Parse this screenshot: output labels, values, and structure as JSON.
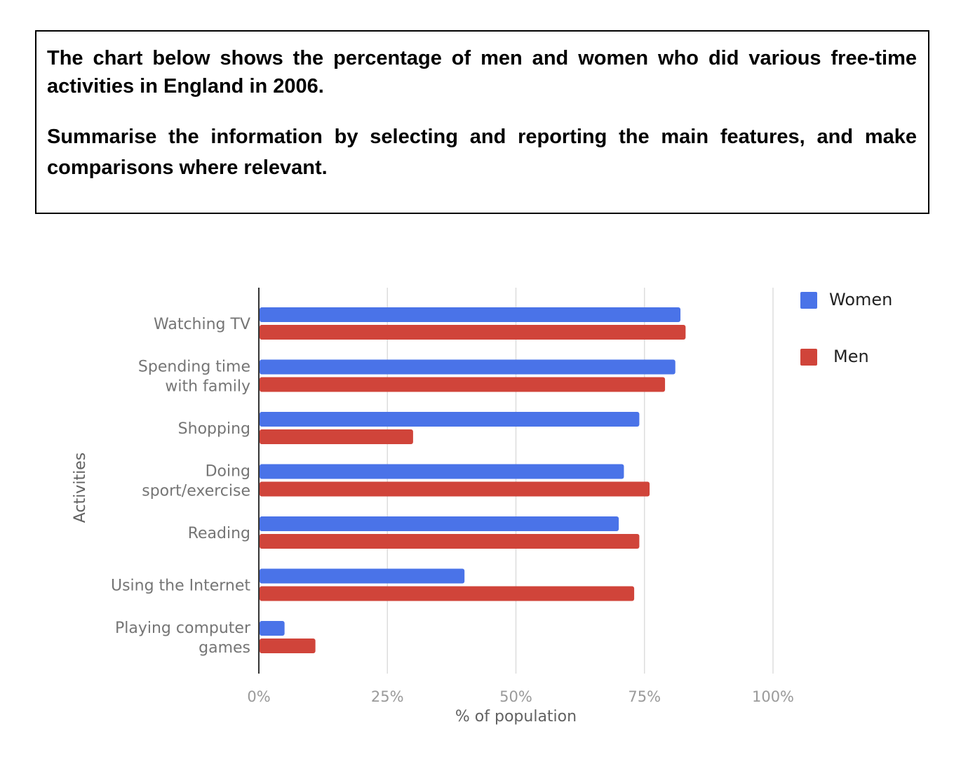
{
  "task": {
    "line1": "The chart below shows the percentage of men and women who did various free-time activities in England in 2006.",
    "line2": "Summarise the information by selecting and reporting the main features, and make comparisons where relevant."
  },
  "chart_data": {
    "type": "bar",
    "orientation": "horizontal",
    "categories": [
      "Watching TV",
      "Spending time with family",
      "Shopping",
      "Doing sport/exercise",
      "Reading",
      "Using the Internet",
      "Playing computer games"
    ],
    "category_lines": [
      [
        "Watching TV"
      ],
      [
        "Spending time",
        "with family"
      ],
      [
        "Shopping"
      ],
      [
        "Doing",
        "sport/exercise"
      ],
      [
        "Reading"
      ],
      [
        "Using the Internet"
      ],
      [
        "Playing computer",
        "games"
      ]
    ],
    "series": [
      {
        "name": "Women",
        "color": "#4a73e8",
        "values": [
          82,
          81,
          74,
          71,
          70,
          40,
          5
        ]
      },
      {
        "name": "Men",
        "color": "#d0443a",
        "values": [
          83,
          79,
          30,
          76,
          74,
          73,
          11
        ]
      }
    ],
    "xlabel": "% of population",
    "ylabel": "Activities",
    "xlim": [
      0,
      100
    ],
    "xticks": [
      "0%",
      "25%",
      "50%",
      "75%",
      "100%"
    ],
    "grid": true,
    "legend_position": "right"
  }
}
